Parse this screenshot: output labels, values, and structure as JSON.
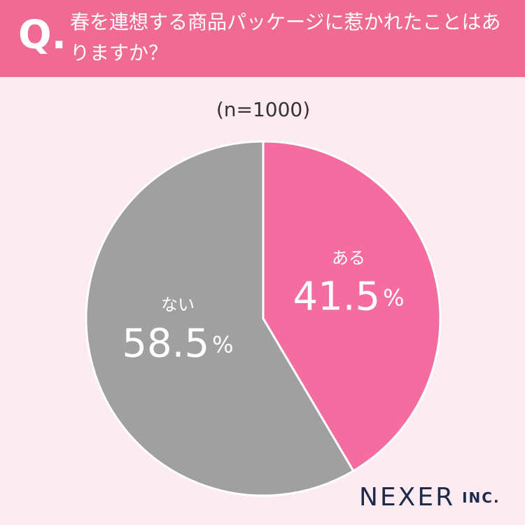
{
  "header": {
    "mark": "Q.",
    "title": "春を連想する商品パッケージに惹かれたことはありますか？"
  },
  "chart_data": {
    "type": "pie",
    "subtitle": "(n=1000)",
    "categories": [
      "ある",
      "ない"
    ],
    "values": [
      41.5,
      58.5
    ],
    "value_labels": [
      "41.5%",
      "58.5%"
    ],
    "colors": [
      "#f46ca0",
      "#a0a0a0"
    ]
  },
  "brand": {
    "name": "NEXER",
    "suffix": "INC."
  }
}
